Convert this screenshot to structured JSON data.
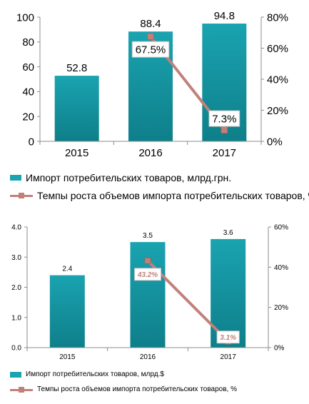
{
  "colors": {
    "bar": "#1aa3b0",
    "bar_gradient_end": "#0e7f8a",
    "line": "#c1817a",
    "marker": "#c1817a",
    "axis": "#8c8c8c",
    "label_box_border": "#c0c0c0",
    "italic_label_color": "#c1817a"
  },
  "chart_data": [
    {
      "type": "bar",
      "categories": [
        "2015",
        "2016",
        "2017"
      ],
      "series": [
        {
          "name": "Импорт потребительских товаров, млрд.грн.",
          "type": "bar",
          "axis": "left",
          "values": [
            52.8,
            88.4,
            94.8
          ],
          "labels": [
            "52.8",
            "88.4",
            "94.8"
          ]
        },
        {
          "name": "Темпы роста объемов импорта потребительских товаров, %",
          "type": "line",
          "axis": "right",
          "x": [
            "2016",
            "2017"
          ],
          "values": [
            67.5,
            7.3
          ],
          "labels": [
            "67.5%",
            "7.3%"
          ]
        }
      ],
      "y_left": {
        "min": 0,
        "max": 100,
        "ticks": [
          "0",
          "20",
          "40",
          "60",
          "80",
          "100"
        ]
      },
      "y_right": {
        "min": 0,
        "max": 80,
        "ticks": [
          "0%",
          "20%",
          "40%",
          "60%",
          "80%"
        ]
      },
      "legend": [
        "Импорт потребительских товаров, млрд.грн.",
        "Темпы роста объемов импорта потребительских товаров, %"
      ],
      "legend_position": "bottom",
      "grid": false
    },
    {
      "type": "bar",
      "categories": [
        "2015",
        "2016",
        "2017"
      ],
      "series": [
        {
          "name": "Импорт потребительских товаров, млрд.$",
          "type": "bar",
          "axis": "left",
          "values": [
            2.4,
            3.5,
            3.6
          ],
          "labels": [
            "2.4",
            "3.5",
            "3.6"
          ]
        },
        {
          "name": "Темпы роста объемов импорта потребительских товаров, %",
          "type": "line",
          "axis": "right",
          "x": [
            "2016",
            "2017"
          ],
          "values": [
            43.2,
            3.1
          ],
          "labels": [
            "43.2%",
            "3.1%"
          ]
        }
      ],
      "y_left": {
        "min": 0,
        "max": 4,
        "ticks": [
          "0.0",
          "1.0",
          "2.0",
          "3.0",
          "4.0"
        ]
      },
      "y_right": {
        "min": 0,
        "max": 60,
        "ticks": [
          "0%",
          "20%",
          "40%",
          "60%"
        ]
      },
      "legend": [
        "Импорт потребительских товаров, млрд.$",
        "Темпы роста объемов импорта потребительских товаров, %"
      ],
      "legend_position": "bottom",
      "grid": false
    }
  ]
}
